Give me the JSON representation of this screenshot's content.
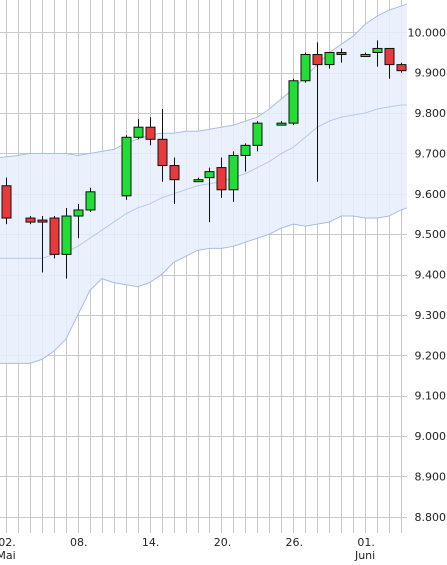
{
  "chart_data": {
    "type": "candlestick",
    "grid": true,
    "y_axis_position": "right",
    "ylim": [
      8760,
      10080
    ],
    "y_ticks": [
      "10.000",
      "9.900",
      "9.800",
      "9.700",
      "9.600",
      "9.500",
      "9.400",
      "9.300",
      "9.200",
      "9.100",
      "9.000",
      "8.900",
      "8.800"
    ],
    "x_tick_labels": [
      {
        "text": "02.",
        "sub": "Mai",
        "day": 0
      },
      {
        "text": "08.",
        "sub": "",
        "day": 6
      },
      {
        "text": "14.",
        "sub": "",
        "day": 12
      },
      {
        "text": "20.",
        "sub": "",
        "day": 18
      },
      {
        "text": "26.",
        "sub": "",
        "day": 24
      },
      {
        "text": "01.",
        "sub": "Juni",
        "day": 30
      }
    ],
    "x_range_days": [
      -0.5,
      33.5
    ],
    "candles": [
      {
        "day": 0,
        "open": 9620,
        "high": 9640,
        "low": 9525,
        "close": 9540
      },
      {
        "day": 2,
        "open": 9540,
        "high": 9545,
        "low": 9525,
        "close": 9530
      },
      {
        "day": 3,
        "open": 9535,
        "high": 9545,
        "low": 9405,
        "close": 9530
      },
      {
        "day": 4,
        "open": 9540,
        "high": 9545,
        "low": 9440,
        "close": 9450
      },
      {
        "day": 5,
        "open": 9450,
        "high": 9565,
        "low": 9390,
        "close": 9545
      },
      {
        "day": 6,
        "open": 9545,
        "high": 9575,
        "low": 9490,
        "close": 9560
      },
      {
        "day": 7,
        "open": 9560,
        "high": 9615,
        "low": 9555,
        "close": 9605
      },
      {
        "day": 10,
        "open": 9595,
        "high": 9745,
        "low": 9585,
        "close": 9740
      },
      {
        "day": 11,
        "open": 9740,
        "high": 9785,
        "low": 9735,
        "close": 9765
      },
      {
        "day": 12,
        "open": 9765,
        "high": 9790,
        "low": 9720,
        "close": 9735
      },
      {
        "day": 13,
        "open": 9735,
        "high": 9810,
        "low": 9630,
        "close": 9670
      },
      {
        "day": 14,
        "open": 9670,
        "high": 9690,
        "low": 9575,
        "close": 9635
      },
      {
        "day": 16,
        "open": 9635,
        "high": 9640,
        "low": 9630,
        "close": 9635
      },
      {
        "day": 17,
        "open": 9640,
        "high": 9665,
        "low": 9530,
        "close": 9655
      },
      {
        "day": 18,
        "open": 9665,
        "high": 9690,
        "low": 9590,
        "close": 9610
      },
      {
        "day": 19,
        "open": 9610,
        "high": 9705,
        "low": 9580,
        "close": 9695
      },
      {
        "day": 20,
        "open": 9695,
        "high": 9725,
        "low": 9655,
        "close": 9720
      },
      {
        "day": 21,
        "open": 9720,
        "high": 9780,
        "low": 9705,
        "close": 9775
      },
      {
        "day": 23,
        "open": 9775,
        "high": 9780,
        "low": 9770,
        "close": 9775
      },
      {
        "day": 24,
        "open": 9775,
        "high": 9885,
        "low": 9770,
        "close": 9880
      },
      {
        "day": 25,
        "open": 9880,
        "high": 9950,
        "low": 9875,
        "close": 9945
      },
      {
        "day": 26,
        "open": 9945,
        "high": 9975,
        "low": 9630,
        "close": 9920
      },
      {
        "day": 27,
        "open": 9920,
        "high": 9950,
        "low": 9910,
        "close": 9950
      },
      {
        "day": 28,
        "open": 9950,
        "high": 9960,
        "low": 9925,
        "close": 9945
      },
      {
        "day": 30,
        "open": 9945,
        "high": 9950,
        "low": 9940,
        "close": 9945
      },
      {
        "day": 31,
        "open": 9950,
        "high": 9980,
        "low": 9915,
        "close": 9960
      },
      {
        "day": 32,
        "open": 9960,
        "high": 9960,
        "low": 9885,
        "close": 9920
      },
      {
        "day": 33,
        "open": 9920,
        "high": 9925,
        "low": 9900,
        "close": 9905
      }
    ],
    "bollinger": {
      "days": [
        -0.5,
        1,
        2,
        3,
        4,
        5,
        6,
        7,
        8,
        9,
        10,
        11,
        12,
        13,
        14,
        15,
        16,
        17,
        18,
        19,
        20,
        21,
        22,
        23,
        24,
        25,
        26,
        27,
        28,
        29,
        30,
        31,
        32,
        33,
        33.5
      ],
      "upper": [
        9690,
        9695,
        9700,
        9700,
        9700,
        9700,
        9695,
        9700,
        9705,
        9710,
        9725,
        9735,
        9745,
        9750,
        9750,
        9755,
        9755,
        9760,
        9765,
        9770,
        9780,
        9790,
        9810,
        9835,
        9860,
        9890,
        9920,
        9950,
        9970,
        9990,
        10020,
        10040,
        10055,
        10065,
        10070
      ],
      "middle": [
        9440,
        9440,
        9440,
        9440,
        9450,
        9455,
        9470,
        9490,
        9510,
        9530,
        9550,
        9565,
        9575,
        9590,
        9600,
        9610,
        9620,
        9625,
        9630,
        9640,
        9650,
        9665,
        9680,
        9700,
        9715,
        9740,
        9765,
        9780,
        9790,
        9795,
        9800,
        9810,
        9815,
        9820,
        9820
      ],
      "lower": [
        9180,
        9180,
        9180,
        9190,
        9210,
        9240,
        9300,
        9360,
        9390,
        9380,
        9375,
        9370,
        9380,
        9400,
        9430,
        9445,
        9460,
        9465,
        9465,
        9470,
        9480,
        9490,
        9500,
        9515,
        9525,
        9520,
        9525,
        9530,
        9545,
        9545,
        9540,
        9540,
        9545,
        9560,
        9565
      ]
    },
    "colors": {
      "up": "#22dd33",
      "down": "#e83a3a",
      "band_fill": "#e7effb",
      "band_edge": "#a6bee2",
      "middle_line": "#b5c9e9",
      "grid": "#c8c8c8",
      "wick": "#111111"
    }
  }
}
